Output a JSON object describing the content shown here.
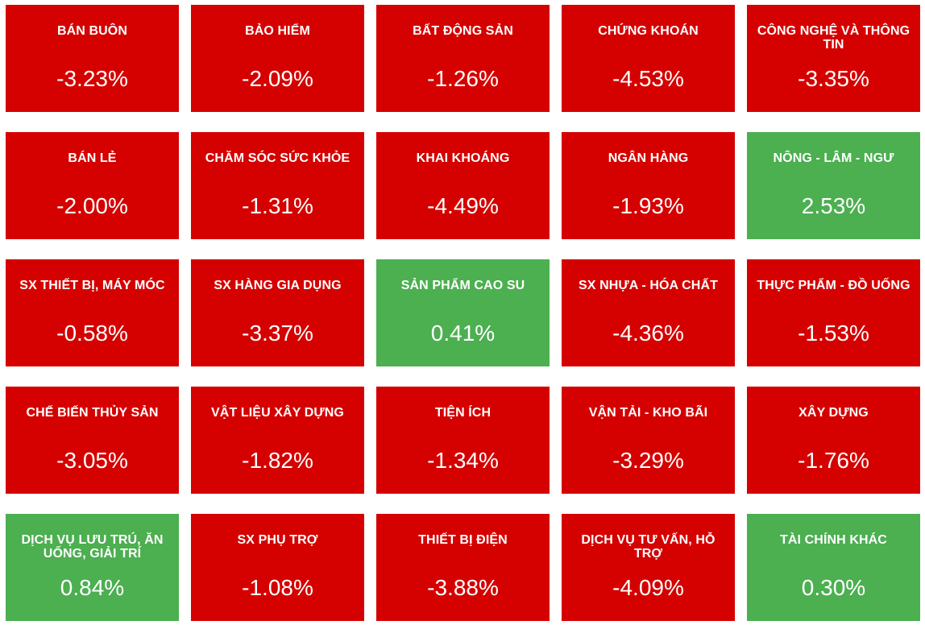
{
  "colors": {
    "down": "#d50000",
    "up": "#4caf50",
    "text": "#ffffff"
  },
  "sectors": [
    {
      "name": "BÁN BUÔN",
      "change": "-3.23%",
      "direction": "down"
    },
    {
      "name": "BẢO HIỂM",
      "change": "-2.09%",
      "direction": "down"
    },
    {
      "name": "BẤT ĐỘNG SẢN",
      "change": "-1.26%",
      "direction": "down"
    },
    {
      "name": "CHỨNG KHOÁN",
      "change": "-4.53%",
      "direction": "down"
    },
    {
      "name": "CÔNG NGHỆ VÀ THÔNG TIN",
      "change": "-3.35%",
      "direction": "down"
    },
    {
      "name": "BÁN LẺ",
      "change": "-2.00%",
      "direction": "down"
    },
    {
      "name": "CHĂM SÓC SỨC KHỎE",
      "change": "-1.31%",
      "direction": "down"
    },
    {
      "name": "KHAI KHOÁNG",
      "change": "-4.49%",
      "direction": "down"
    },
    {
      "name": "NGÂN HÀNG",
      "change": "-1.93%",
      "direction": "down"
    },
    {
      "name": "NÔNG - LÂM - NGƯ",
      "change": "2.53%",
      "direction": "up"
    },
    {
      "name": "SX THIẾT BỊ, MÁY MÓC",
      "change": "-0.58%",
      "direction": "down"
    },
    {
      "name": "SX HÀNG GIA DỤNG",
      "change": "-3.37%",
      "direction": "down"
    },
    {
      "name": "SẢN PHẨM CAO SU",
      "change": "0.41%",
      "direction": "up"
    },
    {
      "name": "SX NHỰA - HÓA CHẤT",
      "change": "-4.36%",
      "direction": "down"
    },
    {
      "name": "THỰC PHẨM - ĐỒ UỐNG",
      "change": "-1.53%",
      "direction": "down"
    },
    {
      "name": "CHẾ BIẾN THỦY SẢN",
      "change": "-3.05%",
      "direction": "down"
    },
    {
      "name": "VẬT LIỆU XÂY DỰNG",
      "change": "-1.82%",
      "direction": "down"
    },
    {
      "name": "TIỆN ÍCH",
      "change": "-1.34%",
      "direction": "down"
    },
    {
      "name": "VẬN TẢI - KHO BÃI",
      "change": "-3.29%",
      "direction": "down"
    },
    {
      "name": "XÂY DỰNG",
      "change": "-1.76%",
      "direction": "down"
    },
    {
      "name": "DỊCH VỤ LƯU TRÚ, ĂN UỐNG, GIẢI TRÍ",
      "change": "0.84%",
      "direction": "up"
    },
    {
      "name": "SX PHỤ TRỢ",
      "change": "-1.08%",
      "direction": "down"
    },
    {
      "name": "THIẾT BỊ ĐIỆN",
      "change": "-3.88%",
      "direction": "down"
    },
    {
      "name": "DỊCH VỤ TƯ VẤN, HỖ TRỢ",
      "change": "-4.09%",
      "direction": "down"
    },
    {
      "name": "TÀI CHÍNH KHÁC",
      "change": "0.30%",
      "direction": "up"
    }
  ]
}
